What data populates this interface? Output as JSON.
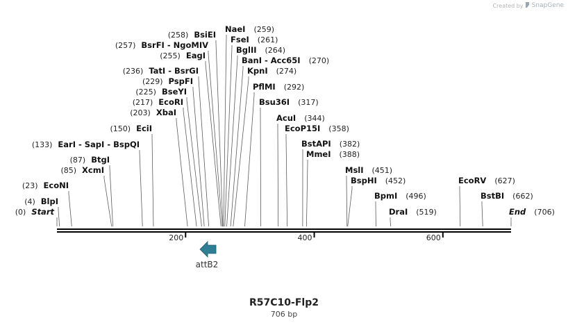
{
  "credit": {
    "prefix": "Created by",
    "brand": "SnapGene"
  },
  "map": {
    "name": "R57C10-Flp2",
    "length_label": "706 bp",
    "length": 706,
    "ruler_ticks": [
      {
        "pos": 200,
        "label": "200"
      },
      {
        "pos": 400,
        "label": "400"
      },
      {
        "pos": 600,
        "label": "600"
      }
    ],
    "sites": [
      {
        "name": "Start",
        "num": "(0)",
        "pos": 0,
        "italic": true
      },
      {
        "name": "BlpI",
        "num": "(4)",
        "pos": 4
      },
      {
        "name": "EcoNI",
        "num": "(23)",
        "pos": 23
      },
      {
        "name": "XcmI",
        "num": "(85)",
        "pos": 85
      },
      {
        "name": "BtgI",
        "num": "(87)",
        "pos": 87
      },
      {
        "name": "EarI  -  SapI  -  BspQI",
        "num": "(133)",
        "pos": 133
      },
      {
        "name": "EciI",
        "num": "(150)",
        "pos": 150
      },
      {
        "name": "XbaI",
        "num": "(203)",
        "pos": 203
      },
      {
        "name": "EcoRI",
        "num": "(217)",
        "pos": 217
      },
      {
        "name": "BseYI",
        "num": "(225)",
        "pos": 225
      },
      {
        "name": "PspFI",
        "num": "(229)",
        "pos": 229
      },
      {
        "name": "TatI  -  BsrGI",
        "num": "(236)",
        "pos": 236
      },
      {
        "name": "EagI",
        "num": "(255)",
        "pos": 255
      },
      {
        "name": "BsrFI  -  NgoMIV",
        "num": "(257)",
        "pos": 257
      },
      {
        "name": "BsiEI",
        "num": "(258)",
        "pos": 258
      },
      {
        "name": "NaeI",
        "num": "(259)",
        "pos": 259
      },
      {
        "name": "FseI",
        "num": "(261)",
        "pos": 261
      },
      {
        "name": "BglII",
        "num": "(264)",
        "pos": 264
      },
      {
        "name": "BanI  -  Acc65I",
        "num": "(270)",
        "pos": 270
      },
      {
        "name": "KpnI",
        "num": "(274)",
        "pos": 274
      },
      {
        "name": "PflMI",
        "num": "(292)",
        "pos": 292
      },
      {
        "name": "Bsu36I",
        "num": "(317)",
        "pos": 317
      },
      {
        "name": "AcuI",
        "num": "(344)",
        "pos": 344
      },
      {
        "name": "EcoP15I",
        "num": "(358)",
        "pos": 358
      },
      {
        "name": "BstAPI",
        "num": "(382)",
        "pos": 382
      },
      {
        "name": "MmeI",
        "num": "(388)",
        "pos": 388
      },
      {
        "name": "MslI",
        "num": "(451)",
        "pos": 451
      },
      {
        "name": "BspHI",
        "num": "(452)",
        "pos": 452
      },
      {
        "name": "BpmI",
        "num": "(496)",
        "pos": 496
      },
      {
        "name": "DraI",
        "num": "(519)",
        "pos": 519
      },
      {
        "name": "EcoRV",
        "num": "(627)",
        "pos": 627
      },
      {
        "name": "BstBI",
        "num": "(662)",
        "pos": 662
      },
      {
        "name": "End",
        "num": "(706)",
        "pos": 706,
        "italic": true
      }
    ],
    "features": [
      {
        "name": "attB2",
        "direction": "reverse",
        "color": "#2e7f93"
      }
    ]
  }
}
